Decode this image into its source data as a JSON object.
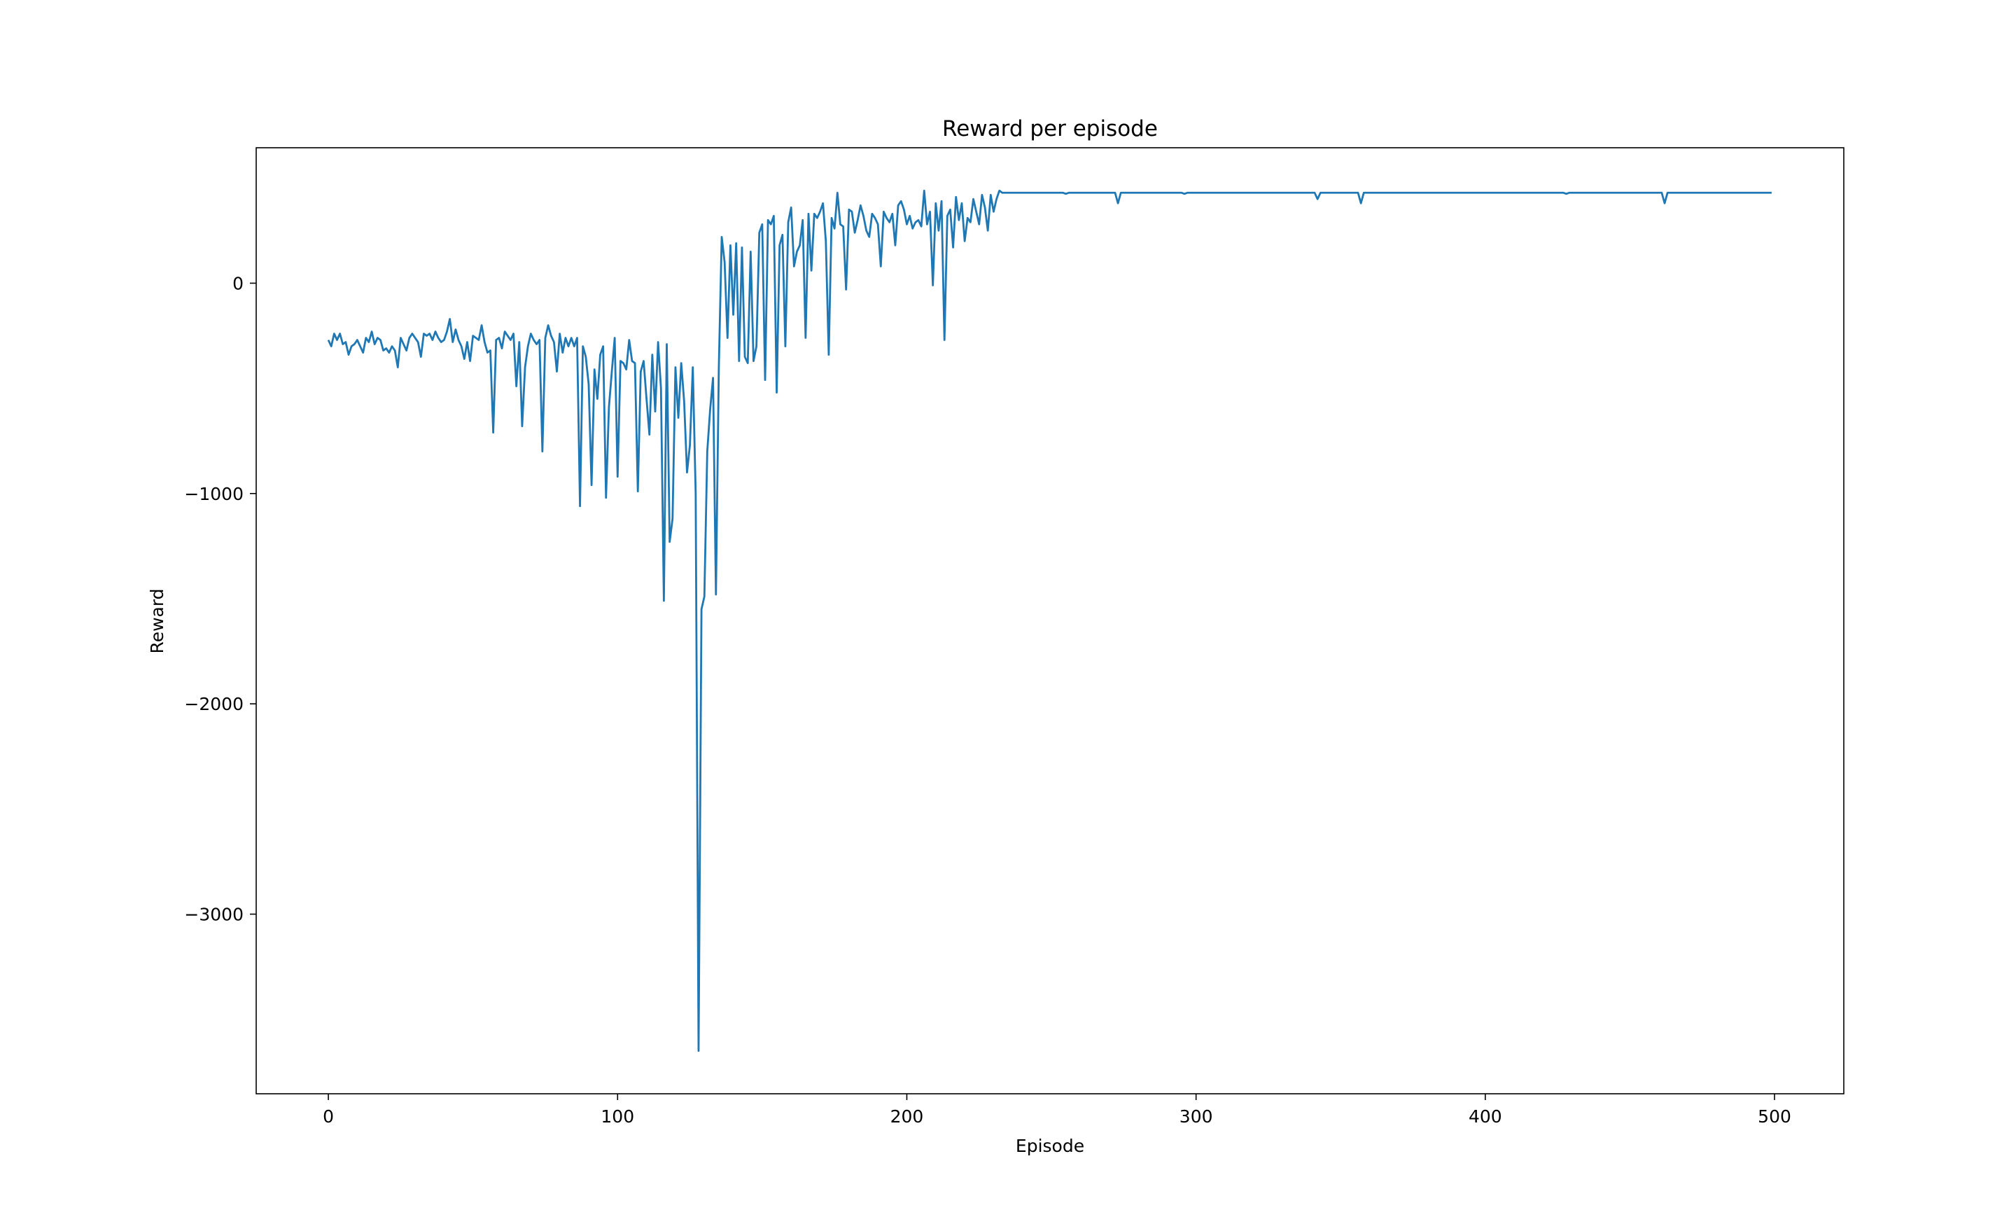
{
  "chart_data": {
    "type": "line",
    "title": "Reward per episode",
    "x_label": "Episode",
    "y_label": "Reward",
    "xlim": [
      -24.95,
      523.95
    ],
    "ylim": [
      -3854,
      644
    ],
    "xticks": [
      0,
      100,
      200,
      300,
      400,
      500
    ],
    "yticks": [
      {
        "value": -3000,
        "label": "−3000"
      },
      {
        "value": -2000,
        "label": "−2000"
      },
      {
        "value": -1000,
        "label": "−1000"
      },
      0
    ],
    "grid": false,
    "x": [
      0,
      1,
      2,
      3,
      4,
      5,
      6,
      7,
      8,
      9,
      10,
      11,
      12,
      13,
      14,
      15,
      16,
      17,
      18,
      19,
      20,
      21,
      22,
      23,
      24,
      25,
      26,
      27,
      28,
      29,
      30,
      31,
      32,
      33,
      34,
      35,
      36,
      37,
      38,
      39,
      40,
      41,
      42,
      43,
      44,
      45,
      46,
      47,
      48,
      49,
      50,
      51,
      52,
      53,
      54,
      55,
      56,
      57,
      58,
      59,
      60,
      61,
      62,
      63,
      64,
      65,
      66,
      67,
      68,
      69,
      70,
      71,
      72,
      73,
      74,
      75,
      76,
      77,
      78,
      79,
      80,
      81,
      82,
      83,
      84,
      85,
      86,
      87,
      88,
      89,
      90,
      91,
      92,
      93,
      94,
      95,
      96,
      97,
      98,
      99,
      100,
      101,
      102,
      103,
      104,
      105,
      106,
      107,
      108,
      109,
      110,
      111,
      112,
      113,
      114,
      115,
      116,
      117,
      118,
      119,
      120,
      121,
      122,
      123,
      124,
      125,
      126,
      127,
      128,
      129,
      130,
      131,
      132,
      133,
      134,
      135,
      136,
      137,
      138,
      139,
      140,
      141,
      142,
      143,
      144,
      145,
      146,
      147,
      148,
      149,
      150,
      151,
      152,
      153,
      154,
      155,
      156,
      157,
      158,
      159,
      160,
      161,
      162,
      163,
      164,
      165,
      166,
      167,
      168,
      169,
      170,
      171,
      172,
      173,
      174,
      175,
      176,
      177,
      178,
      179,
      180,
      181,
      182,
      183,
      184,
      185,
      186,
      187,
      188,
      189,
      190,
      191,
      192,
      193,
      194,
      195,
      196,
      197,
      198,
      199,
      200,
      201,
      202,
      203,
      204,
      205,
      206,
      207,
      208,
      209,
      210,
      211,
      212,
      213,
      214,
      215,
      216,
      217,
      218,
      219,
      220,
      221,
      222,
      223,
      224,
      225,
      226,
      227,
      228,
      229,
      230,
      231,
      232,
      233,
      234,
      235,
      236,
      237,
      238,
      239,
      240,
      241,
      242,
      243,
      244,
      245,
      246,
      247,
      248,
      249,
      250,
      251,
      252,
      253,
      254,
      255,
      256,
      257,
      258,
      259,
      260,
      261,
      262,
      263,
      264,
      265,
      266,
      267,
      268,
      269,
      270,
      271,
      272,
      273,
      274,
      275,
      276,
      277,
      278,
      279,
      280,
      281,
      282,
      283,
      284,
      285,
      286,
      287,
      288,
      289,
      290,
      291,
      292,
      293,
      294,
      295,
      296,
      297,
      298,
      299,
      300,
      301,
      302,
      303,
      304,
      305,
      306,
      307,
      308,
      309,
      310,
      311,
      312,
      313,
      314,
      315,
      316,
      317,
      318,
      319,
      320,
      321,
      322,
      323,
      324,
      325,
      326,
      327,
      328,
      329,
      330,
      331,
      332,
      333,
      334,
      335,
      336,
      337,
      338,
      339,
      340,
      341,
      342,
      343,
      344,
      345,
      346,
      347,
      348,
      349,
      350,
      351,
      352,
      353,
      354,
      355,
      356,
      357,
      358,
      359,
      360,
      361,
      362,
      363,
      364,
      365,
      366,
      367,
      368,
      369,
      370,
      371,
      372,
      373,
      374,
      375,
      376,
      377,
      378,
      379,
      380,
      381,
      382,
      383,
      384,
      385,
      386,
      387,
      388,
      389,
      390,
      391,
      392,
      393,
      394,
      395,
      396,
      397,
      398,
      399,
      400,
      401,
      402,
      403,
      404,
      405,
      406,
      407,
      408,
      409,
      410,
      411,
      412,
      413,
      414,
      415,
      416,
      417,
      418,
      419,
      420,
      421,
      422,
      423,
      424,
      425,
      426,
      427,
      428,
      429,
      430,
      431,
      432,
      433,
      434,
      435,
      436,
      437,
      438,
      439,
      440,
      441,
      442,
      443,
      444,
      445,
      446,
      447,
      448,
      449,
      450,
      451,
      452,
      453,
      454,
      455,
      456,
      457,
      458,
      459,
      460,
      461,
      462,
      463,
      464,
      465,
      466,
      467,
      468,
      469,
      470,
      471,
      472,
      473,
      474,
      475,
      476,
      477,
      478,
      479,
      480,
      481,
      482,
      483,
      484,
      485,
      486,
      487,
      488,
      489,
      490,
      491,
      492,
      493,
      494,
      495,
      496,
      497,
      498,
      499
    ],
    "series": [
      {
        "name": "Reward",
        "color": "#1f77b4",
        "values": [
          -270,
          -300,
          -240,
          -270,
          -240,
          -290,
          -280,
          -340,
          -300,
          -290,
          -270,
          -300,
          -330,
          -260,
          -280,
          -230,
          -290,
          -260,
          -270,
          -320,
          -310,
          -330,
          -300,
          -320,
          -400,
          -260,
          -290,
          -320,
          -260,
          -240,
          -260,
          -280,
          -350,
          -240,
          -250,
          -240,
          -270,
          -230,
          -260,
          -280,
          -270,
          -230,
          -170,
          -280,
          -220,
          -270,
          -300,
          -360,
          -280,
          -370,
          -250,
          -260,
          -270,
          -200,
          -280,
          -330,
          -320,
          -710,
          -270,
          -260,
          -310,
          -230,
          -250,
          -270,
          -240,
          -490,
          -280,
          -680,
          -400,
          -300,
          -240,
          -270,
          -290,
          -270,
          -800,
          -260,
          -200,
          -250,
          -280,
          -420,
          -240,
          -330,
          -260,
          -300,
          -260,
          -300,
          -260,
          -1060,
          -300,
          -350,
          -480,
          -960,
          -410,
          -550,
          -340,
          -300,
          -1020,
          -590,
          -420,
          -260,
          -920,
          -370,
          -380,
          -410,
          -270,
          -370,
          -380,
          -990,
          -420,
          -370,
          -550,
          -720,
          -340,
          -610,
          -280,
          -500,
          -1510,
          -290,
          -1230,
          -1120,
          -400,
          -640,
          -380,
          -560,
          -900,
          -770,
          -400,
          -1000,
          -3650,
          -1550,
          -1490,
          -800,
          -600,
          -450,
          -1480,
          -400,
          220,
          100,
          -260,
          180,
          -150,
          190,
          -370,
          170,
          -350,
          -380,
          150,
          -370,
          -300,
          240,
          280,
          -460,
          300,
          280,
          320,
          -520,
          180,
          230,
          -300,
          290,
          360,
          80,
          150,
          180,
          300,
          -260,
          330,
          60,
          330,
          310,
          340,
          380,
          200,
          -340,
          310,
          260,
          430,
          280,
          270,
          -30,
          350,
          340,
          240,
          300,
          370,
          320,
          250,
          220,
          330,
          310,
          280,
          80,
          340,
          310,
          290,
          330,
          180,
          370,
          390,
          350,
          280,
          320,
          260,
          290,
          300,
          270,
          440,
          280,
          340,
          -10,
          380,
          250,
          390,
          -270,
          320,
          350,
          170,
          410,
          300,
          380,
          200,
          310,
          290,
          400,
          340,
          280,
          420,
          360,
          250,
          420,
          340,
          400,
          440,
          430,
          430,
          430,
          430,
          430,
          430,
          430,
          430,
          430,
          430,
          430,
          430,
          430,
          430,
          430,
          430,
          430,
          430,
          430,
          430,
          430,
          430,
          425,
          430,
          430,
          430,
          430,
          430,
          430,
          430,
          430,
          430,
          430,
          430,
          430,
          430,
          430,
          430,
          430,
          430,
          380,
          430,
          430,
          430,
          430,
          430,
          430,
          430,
          430,
          430,
          430,
          430,
          430,
          430,
          430,
          430,
          430,
          430,
          430,
          430,
          430,
          430,
          430,
          425,
          430,
          430,
          430,
          430,
          430,
          430,
          430,
          430,
          430,
          430,
          430,
          430,
          430,
          430,
          430,
          430,
          430,
          430,
          430,
          430,
          430,
          430,
          430,
          430,
          430,
          430,
          430,
          430,
          430,
          430,
          430,
          430,
          430,
          430,
          430,
          430,
          430,
          430,
          430,
          430,
          430,
          430,
          430,
          430,
          430,
          400,
          430,
          430,
          430,
          430,
          430,
          430,
          430,
          430,
          430,
          430,
          430,
          430,
          430,
          430,
          380,
          430,
          430,
          430,
          430,
          430,
          430,
          430,
          430,
          430,
          430,
          430,
          430,
          430,
          430,
          430,
          430,
          430,
          430,
          430,
          430,
          430,
          430,
          430,
          430,
          430,
          430,
          430,
          430,
          430,
          430,
          430,
          430,
          430,
          430,
          430,
          430,
          430,
          430,
          430,
          430,
          430,
          430,
          430,
          430,
          430,
          430,
          430,
          430,
          430,
          430,
          430,
          430,
          430,
          430,
          430,
          430,
          430,
          430,
          430,
          430,
          430,
          430,
          430,
          430,
          430,
          430,
          430,
          430,
          430,
          430,
          425,
          430,
          430,
          430,
          430,
          430,
          430,
          430,
          430,
          430,
          430,
          430,
          430,
          430,
          430,
          430,
          430,
          430,
          430,
          430,
          430,
          430,
          430,
          430,
          430,
          430,
          430,
          430,
          430,
          430,
          430,
          430,
          430,
          430,
          380,
          430,
          430,
          430,
          430,
          430,
          430,
          430,
          430,
          430,
          430,
          430,
          430,
          430,
          430,
          430,
          430,
          430,
          430,
          430,
          430,
          430,
          430,
          430,
          430,
          430,
          430,
          430,
          430,
          430,
          430,
          430,
          430,
          430,
          430,
          430,
          430,
          430
        ]
      }
    ]
  }
}
